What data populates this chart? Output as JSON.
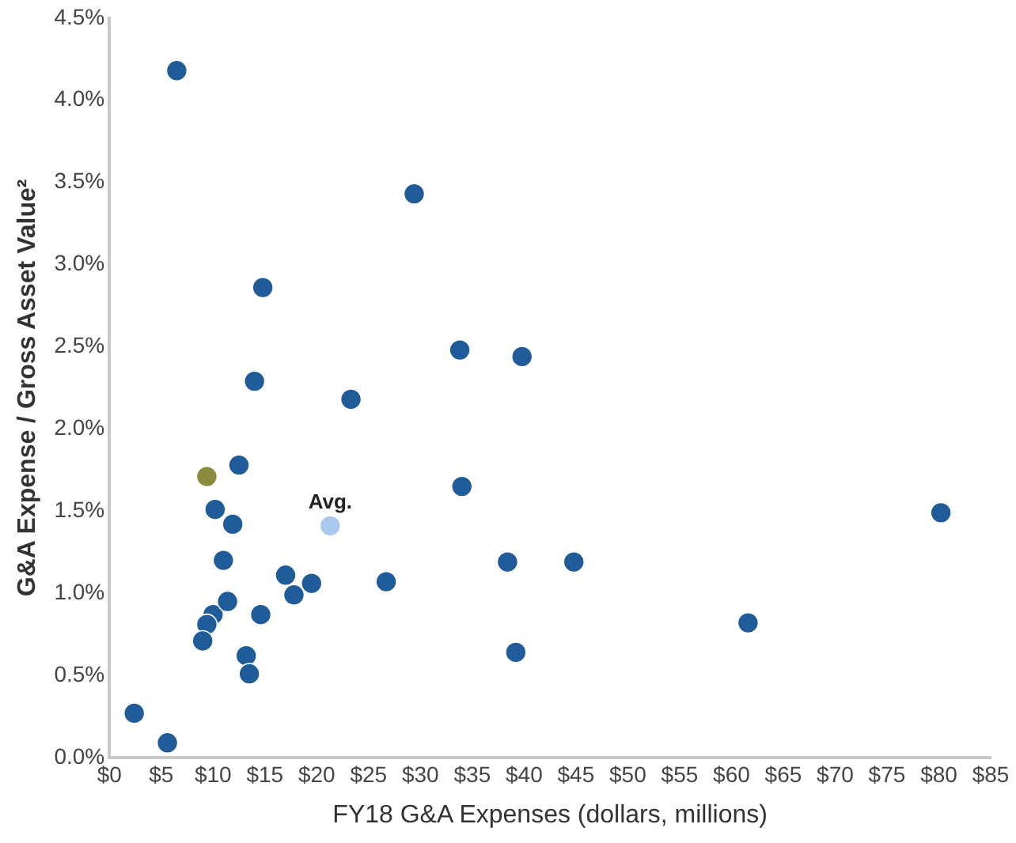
{
  "chart_data": {
    "type": "scatter",
    "xlabel": "FY18 G&A Expenses (dollars, millions)",
    "ylabel": "G&A Expense / Gross Asset Value²",
    "xlim": [
      0,
      85
    ],
    "xticks": [
      {
        "value": 0,
        "label": "$0"
      },
      {
        "value": 5,
        "label": "$5"
      },
      {
        "value": 10,
        "label": "$10"
      },
      {
        "value": 15,
        "label": "$15"
      },
      {
        "value": 20,
        "label": "$20"
      },
      {
        "value": 25,
        "label": "$25"
      },
      {
        "value": 30,
        "label": "$30"
      },
      {
        "value": 35,
        "label": "$35"
      },
      {
        "value": 40,
        "label": "$40"
      },
      {
        "value": 45,
        "label": "$45"
      },
      {
        "value": 50,
        "label": "$50"
      },
      {
        "value": 55,
        "label": "$55"
      },
      {
        "value": 60,
        "label": "$60"
      },
      {
        "value": 65,
        "label": "$65"
      },
      {
        "value": 70,
        "label": "$70"
      },
      {
        "value": 75,
        "label": "$75"
      },
      {
        "value": 80,
        "label": "$80"
      },
      {
        "value": 85,
        "label": "$85"
      }
    ],
    "ylim": [
      0,
      4.5
    ],
    "yticks": [
      {
        "value": 0,
        "label": "0.0%"
      },
      {
        "value": 0.5,
        "label": "0.5%"
      },
      {
        "value": 1,
        "label": "1.0%"
      },
      {
        "value": 1.5,
        "label": "1.5%"
      },
      {
        "value": 2,
        "label": "2.0%"
      },
      {
        "value": 2.5,
        "label": "2.5%"
      },
      {
        "value": 3,
        "label": "3.0%"
      },
      {
        "value": 3.5,
        "label": "3.5%"
      },
      {
        "value": 4,
        "label": "4.0%"
      },
      {
        "value": 4.5,
        "label": "4.5%"
      }
    ],
    "grid": false,
    "legend": false,
    "marker": "circle",
    "series": [
      {
        "color": "#1f5c99",
        "x": [
          2.4,
          5.6,
          6.5,
          29.4,
          14.8,
          33.8,
          39.8,
          14.0,
          23.3,
          12.5,
          34.0,
          10.2,
          11.9,
          11.0,
          38.4,
          44.8,
          80.2,
          61.6,
          17.0,
          17.8,
          19.5,
          26.7,
          10.0,
          9.4,
          9.0,
          11.4,
          14.6,
          13.2,
          13.5,
          39.2
        ],
        "values": [
          0.27,
          0.09,
          4.18,
          3.43,
          2.86,
          2.48,
          2.44,
          2.29,
          2.18,
          1.78,
          1.65,
          1.51,
          1.42,
          1.2,
          1.19,
          1.19,
          1.49,
          0.82,
          1.11,
          0.99,
          1.06,
          1.07,
          0.87,
          0.81,
          0.71,
          0.95,
          0.87,
          0.62,
          0.51,
          0.64
        ]
      },
      {
        "color": "#8c8a3c",
        "x": [
          9.4
        ],
        "values": [
          1.71
        ]
      },
      {
        "color": "#a9c8ec",
        "x": [
          21.3
        ],
        "values": [
          1.41
        ]
      }
    ],
    "annotations": [
      {
        "text": "Avg.",
        "x": 21.3,
        "y": 1.41
      }
    ]
  }
}
